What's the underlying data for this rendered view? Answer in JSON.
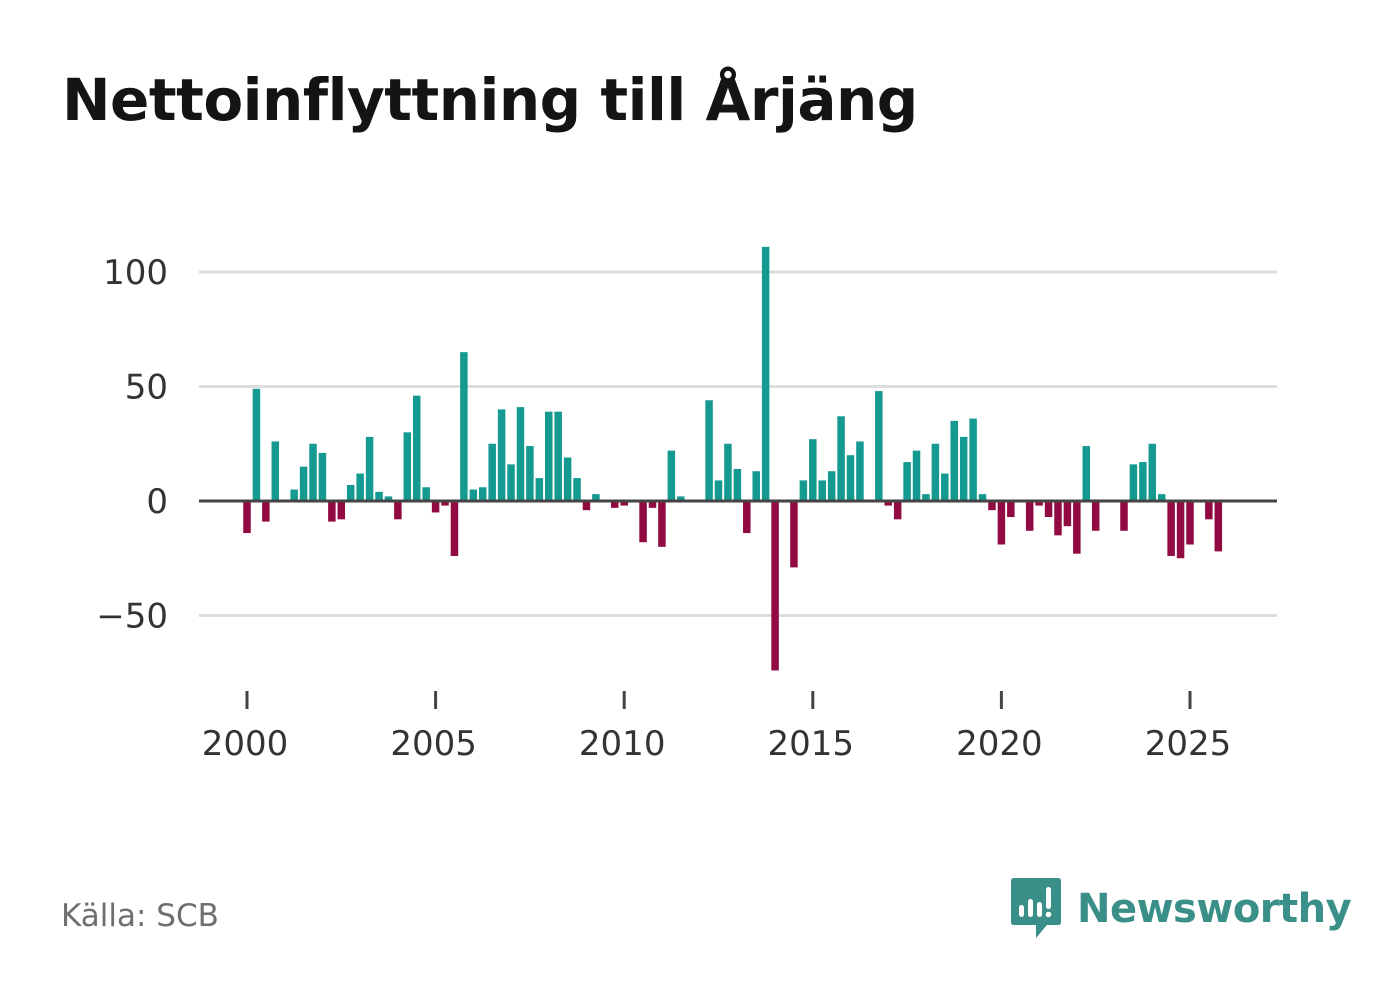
{
  "title": "Nettoinflyttning till Årjäng",
  "source": "Källa: SCB",
  "brand": {
    "name": "Newsworthy",
    "logo": "newsworthy-logo-icon"
  },
  "colors": {
    "positive": "#159a91",
    "negative": "#920a42",
    "grid": "#dddddd",
    "zero_line": "#444444",
    "brand": "#3a8f88"
  },
  "chart_data": {
    "type": "bar",
    "title": "Nettoinflyttning till Årjäng",
    "xlabel": "",
    "ylabel": "",
    "frequency": "quarterly",
    "start": 2000.0,
    "step": 0.25,
    "ylim": [
      -80,
      115
    ],
    "xlim": [
      1999.0,
      2027.5
    ],
    "yticks": [
      100,
      50,
      0,
      -50
    ],
    "ytick_labels": [
      "100",
      "50",
      "0",
      "−50"
    ],
    "xticks": [
      2000,
      2005,
      2010,
      2015,
      2020,
      2025
    ],
    "xtick_labels": [
      "2000",
      "2005",
      "2010",
      "2015",
      "2020",
      "2025"
    ],
    "grid": true,
    "values": [
      -14,
      49,
      -9,
      26,
      0,
      5,
      15,
      25,
      21,
      -9,
      -8,
      7,
      12,
      28,
      4,
      2,
      -8,
      30,
      46,
      6,
      -5,
      -2,
      -24,
      65,
      5,
      6,
      25,
      40,
      16,
      41,
      24,
      10,
      39,
      39,
      19,
      10,
      -4,
      3,
      0,
      -3,
      -2,
      0,
      -18,
      -3,
      -20,
      22,
      2,
      0,
      0,
      44,
      9,
      25,
      14,
      -14,
      13,
      111,
      -74,
      0,
      -29,
      9,
      27,
      9,
      13,
      37,
      20,
      26,
      0,
      48,
      -2,
      -8,
      17,
      22,
      3,
      25,
      12,
      35,
      28,
      36,
      3,
      -4,
      -19,
      -7,
      0,
      -13,
      -2,
      -7,
      -15,
      -11,
      -23,
      24,
      -13,
      0,
      0,
      -13,
      16,
      17,
      25,
      3,
      -24,
      -25,
      -19,
      0,
      -8,
      -22
    ]
  }
}
